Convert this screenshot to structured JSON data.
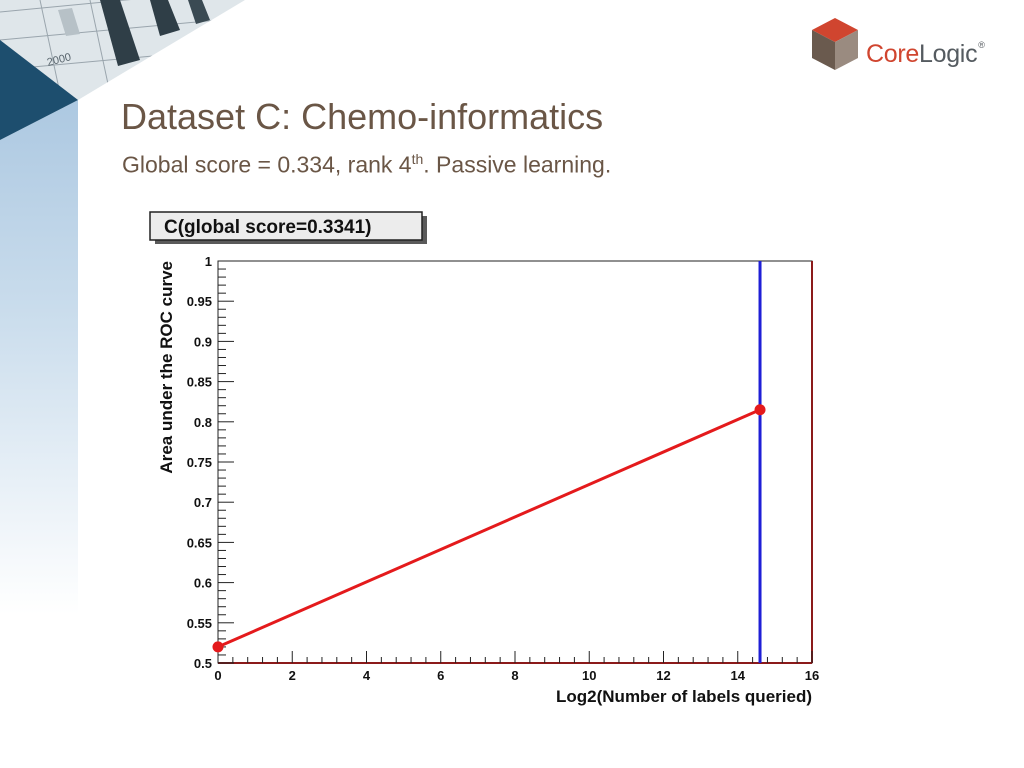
{
  "slide": {
    "title": "Dataset C: Chemo-informatics",
    "subtitle_main": "Global score = 0.334, rank 4",
    "subtitle_sup": "th",
    "subtitle_tail": ". Passive learning."
  },
  "brand": {
    "logo_word_1": "Core",
    "logo_word_2": "Logic",
    "logo_mark": "®",
    "corner_text": "2000",
    "colors": {
      "accent": "#d0452f",
      "text": "#6a5646",
      "grey": "#555b60"
    }
  },
  "chart_data": {
    "type": "line",
    "title": "C(global score=0.3341)",
    "xlabel": "Log2(Number of labels queried)",
    "ylabel": "Area under the ROC curve",
    "xlim": [
      0,
      16
    ],
    "ylim": [
      0.5,
      1.0
    ],
    "x_ticks": [
      0,
      2,
      4,
      6,
      8,
      10,
      12,
      14,
      16
    ],
    "y_ticks": [
      0.5,
      0.55,
      0.6,
      0.65,
      0.7,
      0.75,
      0.8,
      0.85,
      0.9,
      0.95,
      1.0
    ],
    "x_tick_labels": [
      "0",
      "2",
      "4",
      "6",
      "8",
      "10",
      "12",
      "14",
      "16"
    ],
    "y_tick_labels": [
      "0.5",
      "0.55",
      "0.6",
      "0.65",
      "0.7",
      "0.75",
      "0.8",
      "0.85",
      "0.9",
      "0.95",
      "1"
    ],
    "series": [
      {
        "color": "#e41a1c",
        "x": [
          0,
          14.6
        ],
        "y": [
          0.52,
          0.815
        ]
      }
    ],
    "vertical_line": {
      "x": 14.6,
      "color": "#1f1fd6"
    },
    "grid": false
  }
}
